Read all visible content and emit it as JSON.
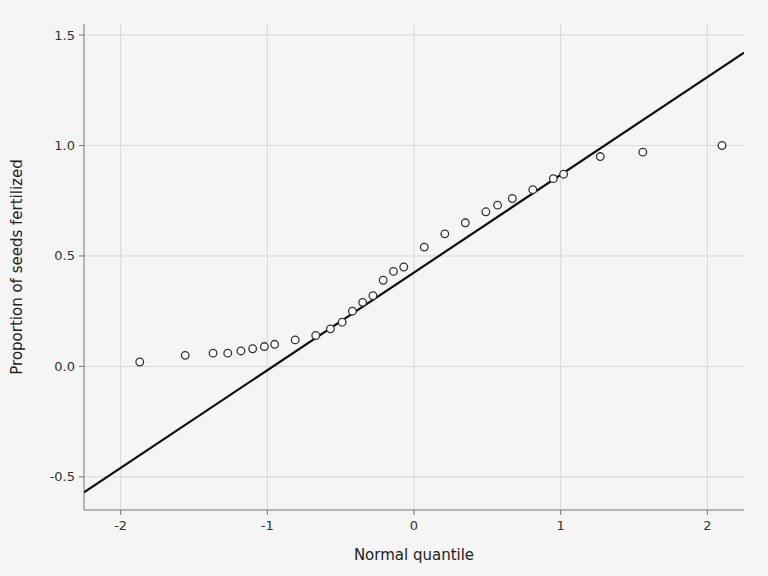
{
  "chart_data": {
    "type": "scatter",
    "xlabel": "Normal quantile",
    "ylabel": "Proportion of seeds fertilized",
    "xlim": [
      -2.25,
      2.25
    ],
    "ylim": [
      -0.65,
      1.55
    ],
    "xticks": [
      -2,
      -1,
      0,
      1,
      2
    ],
    "yticks": [
      -0.5,
      {
        "value": 0.0,
        "label": "0.0"
      },
      0.5,
      {
        "value": 1.0,
        "label": "1.0"
      },
      1.5
    ],
    "grid": true,
    "series": [
      {
        "type": "scatter",
        "marker": "circle",
        "color": "#333333",
        "x": [
          -1.87,
          -1.56,
          -1.37,
          -1.27,
          -1.18,
          -1.1,
          -1.02,
          -0.95,
          -0.81,
          -0.67,
          -0.57,
          -0.49,
          -0.42,
          -0.35,
          -0.28,
          -0.21,
          -0.14,
          -0.07,
          0.07,
          0.21,
          0.35,
          0.49,
          0.57,
          0.67,
          0.81,
          0.95,
          1.02,
          1.27,
          1.56,
          2.1
        ],
        "values": [
          0.02,
          0.05,
          0.06,
          0.06,
          0.07,
          0.08,
          0.09,
          0.1,
          0.12,
          0.14,
          0.17,
          0.2,
          0.25,
          0.29,
          0.32,
          0.39,
          0.43,
          0.45,
          0.54,
          0.6,
          0.65,
          0.7,
          0.73,
          0.76,
          0.8,
          0.85,
          0.87,
          0.95,
          0.97,
          1.0
        ]
      },
      {
        "type": "line",
        "line_style": "solid",
        "color": "#111111",
        "x": [
          -2.25,
          2.25
        ],
        "values": [
          -0.57,
          1.42
        ]
      }
    ]
  }
}
